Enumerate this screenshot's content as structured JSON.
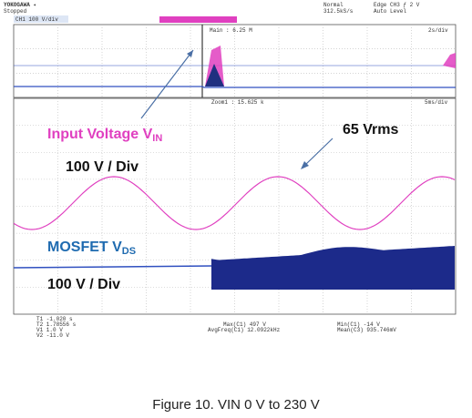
{
  "header": {
    "brand": "YOKOGAWA ✦",
    "status": "Stopped",
    "mode": "Normal",
    "sample_rate": "312.5kS/s",
    "trigger": "Edge CH3 ƒ 2 V",
    "trigger_level": "Auto Level",
    "channel": "CH1 100 V/div",
    "main_timebase": "2s/div",
    "main_points": "Main : 6.25 M",
    "zoom_points": "Zoom1 : 15.625 k",
    "zoom_timebase": "5ms/div"
  },
  "annotations": {
    "input_label": "Input Voltage V",
    "input_sub": "IN",
    "input_scale": "100 V / Div",
    "rms": "65 Vrms",
    "mosfet_label": "MOSFET V",
    "mosfet_sub": "DS",
    "mosfet_scale": "100 V / Div"
  },
  "measurements": {
    "t1": "T1 -1.020 s",
    "t2": "T2 1.78556 s",
    "v1": "V1 1.0 V",
    "v2": "V2 -11.0 V",
    "max": "Max(C1) 497 V",
    "avgfreq": "AvgFreq(C1) 12.0922kHz",
    "min": "Min(C1) -14 V",
    "mean": "Mean(C3) 935.746mV"
  },
  "caption": "Figure 10. VIN 0 V to 230 V"
}
